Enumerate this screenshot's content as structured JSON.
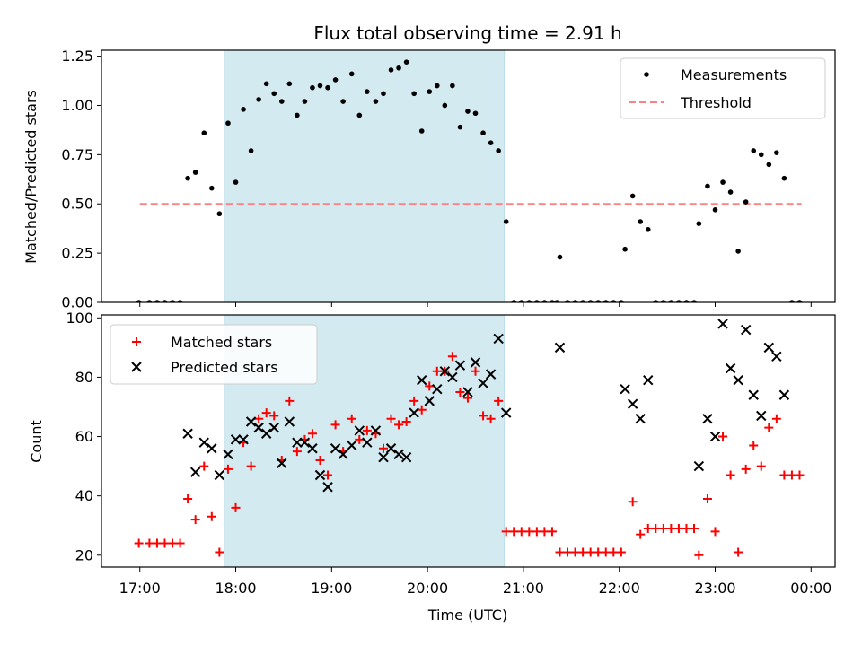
{
  "chart_data": {
    "type": "scatter",
    "title": "Flux total observing time = 2.91 h",
    "xlabel": "Time (UTC)",
    "x_ticks": [
      "17:00",
      "18:00",
      "19:00",
      "20:00",
      "21:00",
      "22:00",
      "23:00",
      "00:00"
    ],
    "x_range_hours": [
      16.6,
      24.25
    ],
    "shaded_interval_hours": [
      17.88,
      20.8
    ],
    "shade_color": "#d3eaf1",
    "top": {
      "ylabel": "Matched/Predicted stars",
      "ylim": [
        0,
        1.28
      ],
      "y_ticks": [
        "0.00",
        "0.25",
        "0.50",
        "0.75",
        "1.00",
        "1.25"
      ],
      "y_tick_values": [
        0,
        0.25,
        0.5,
        0.75,
        1.0,
        1.25
      ],
      "threshold": {
        "name": "Threshold",
        "value": 0.5,
        "x_range_hours": [
          17.0,
          23.9
        ],
        "color": "#ff8080"
      },
      "measurements": {
        "name": "Measurements",
        "color": "#000000",
        "points": [
          [
            16.99,
            0.0
          ],
          [
            17.1,
            0.0
          ],
          [
            17.18,
            0.0
          ],
          [
            17.26,
            0.0
          ],
          [
            17.34,
            0.0
          ],
          [
            17.42,
            0.0
          ],
          [
            17.5,
            0.63
          ],
          [
            17.58,
            0.66
          ],
          [
            17.67,
            0.86
          ],
          [
            17.75,
            0.58
          ],
          [
            17.83,
            0.45
          ],
          [
            17.92,
            0.91
          ],
          [
            18.0,
            0.61
          ],
          [
            18.08,
            0.98
          ],
          [
            18.16,
            0.77
          ],
          [
            18.24,
            1.03
          ],
          [
            18.32,
            1.11
          ],
          [
            18.4,
            1.06
          ],
          [
            18.48,
            1.02
          ],
          [
            18.56,
            1.11
          ],
          [
            18.64,
            0.95
          ],
          [
            18.72,
            1.02
          ],
          [
            18.8,
            1.09
          ],
          [
            18.88,
            1.1
          ],
          [
            18.96,
            1.09
          ],
          [
            19.04,
            1.13
          ],
          [
            19.12,
            1.02
          ],
          [
            19.21,
            1.16
          ],
          [
            19.29,
            0.95
          ],
          [
            19.37,
            1.07
          ],
          [
            19.46,
            1.02
          ],
          [
            19.54,
            1.06
          ],
          [
            19.62,
            1.18
          ],
          [
            19.7,
            1.19
          ],
          [
            19.78,
            1.22
          ],
          [
            19.86,
            1.06
          ],
          [
            19.94,
            0.87
          ],
          [
            20.02,
            1.07
          ],
          [
            20.1,
            1.1
          ],
          [
            20.18,
            1.0
          ],
          [
            20.26,
            1.1
          ],
          [
            20.34,
            0.89
          ],
          [
            20.42,
            0.97
          ],
          [
            20.5,
            0.96
          ],
          [
            20.58,
            0.86
          ],
          [
            20.66,
            0.81
          ],
          [
            20.74,
            0.77
          ],
          [
            20.82,
            0.41
          ],
          [
            20.9,
            0.0
          ],
          [
            20.98,
            0.0
          ],
          [
            21.06,
            0.0
          ],
          [
            21.14,
            0.0
          ],
          [
            21.22,
            0.0
          ],
          [
            21.3,
            0.0
          ],
          [
            21.35,
            0.0
          ],
          [
            21.38,
            0.23
          ],
          [
            21.46,
            0.0
          ],
          [
            21.54,
            0.0
          ],
          [
            21.62,
            0.0
          ],
          [
            21.7,
            0.0
          ],
          [
            21.78,
            0.0
          ],
          [
            21.86,
            0.0
          ],
          [
            21.94,
            0.0
          ],
          [
            22.02,
            0.0
          ],
          [
            22.06,
            0.27
          ],
          [
            22.14,
            0.54
          ],
          [
            22.22,
            0.41
          ],
          [
            22.3,
            0.37
          ],
          [
            22.38,
            0.0
          ],
          [
            22.46,
            0.0
          ],
          [
            22.54,
            0.0
          ],
          [
            22.62,
            0.0
          ],
          [
            22.7,
            0.0
          ],
          [
            22.78,
            0.0
          ],
          [
            22.83,
            0.4
          ],
          [
            22.92,
            0.59
          ],
          [
            23.0,
            0.47
          ],
          [
            23.08,
            0.61
          ],
          [
            23.16,
            0.56
          ],
          [
            23.24,
            0.26
          ],
          [
            23.32,
            0.51
          ],
          [
            23.4,
            0.77
          ],
          [
            23.48,
            0.75
          ],
          [
            23.56,
            0.7
          ],
          [
            23.64,
            0.76
          ],
          [
            23.72,
            0.63
          ],
          [
            23.8,
            0.0
          ],
          [
            23.88,
            0.0
          ]
        ]
      }
    },
    "bottom": {
      "ylabel": "Count",
      "ylim": [
        16,
        101
      ],
      "y_ticks": [
        "20",
        "40",
        "60",
        "80",
        "100"
      ],
      "y_tick_values": [
        20,
        40,
        60,
        80,
        100
      ],
      "series": [
        {
          "name": "Matched stars",
          "marker": "+",
          "color": "#ff0000",
          "points": [
            [
              16.99,
              24
            ],
            [
              17.1,
              24
            ],
            [
              17.18,
              24
            ],
            [
              17.26,
              24
            ],
            [
              17.34,
              24
            ],
            [
              17.42,
              24
            ],
            [
              17.5,
              39
            ],
            [
              17.58,
              32
            ],
            [
              17.67,
              50
            ],
            [
              17.75,
              33
            ],
            [
              17.83,
              21
            ],
            [
              17.92,
              49
            ],
            [
              18.0,
              36
            ],
            [
              18.08,
              58
            ],
            [
              18.16,
              50
            ],
            [
              18.24,
              66
            ],
            [
              18.32,
              68
            ],
            [
              18.4,
              67
            ],
            [
              18.48,
              52
            ],
            [
              18.56,
              72
            ],
            [
              18.64,
              55
            ],
            [
              18.72,
              59
            ],
            [
              18.8,
              61
            ],
            [
              18.88,
              52
            ],
            [
              18.96,
              47
            ],
            [
              19.04,
              64
            ],
            [
              19.12,
              55
            ],
            [
              19.21,
              66
            ],
            [
              19.29,
              59
            ],
            [
              19.37,
              62
            ],
            [
              19.46,
              61
            ],
            [
              19.54,
              56
            ],
            [
              19.62,
              66
            ],
            [
              19.7,
              64
            ],
            [
              19.78,
              65
            ],
            [
              19.86,
              72
            ],
            [
              19.94,
              69
            ],
            [
              20.02,
              77
            ],
            [
              20.1,
              82
            ],
            [
              20.18,
              82
            ],
            [
              20.26,
              87
            ],
            [
              20.34,
              75
            ],
            [
              20.42,
              73
            ],
            [
              20.5,
              82
            ],
            [
              20.58,
              67
            ],
            [
              20.66,
              66
            ],
            [
              20.74,
              72
            ],
            [
              20.82,
              28
            ],
            [
              20.9,
              28
            ],
            [
              20.98,
              28
            ],
            [
              21.06,
              28
            ],
            [
              21.14,
              28
            ],
            [
              21.22,
              28
            ],
            [
              21.3,
              28
            ],
            [
              21.38,
              21
            ],
            [
              21.46,
              21
            ],
            [
              21.54,
              21
            ],
            [
              21.62,
              21
            ],
            [
              21.7,
              21
            ],
            [
              21.78,
              21
            ],
            [
              21.86,
              21
            ],
            [
              21.94,
              21
            ],
            [
              22.02,
              21
            ],
            [
              22.14,
              38
            ],
            [
              22.22,
              27
            ],
            [
              22.3,
              29
            ],
            [
              22.38,
              29
            ],
            [
              22.46,
              29
            ],
            [
              22.54,
              29
            ],
            [
              22.62,
              29
            ],
            [
              22.7,
              29
            ],
            [
              22.78,
              29
            ],
            [
              22.83,
              20
            ],
            [
              22.92,
              39
            ],
            [
              23.0,
              28
            ],
            [
              23.08,
              60
            ],
            [
              23.16,
              47
            ],
            [
              23.24,
              21
            ],
            [
              23.32,
              49
            ],
            [
              23.4,
              57
            ],
            [
              23.48,
              50
            ],
            [
              23.56,
              63
            ],
            [
              23.64,
              66
            ],
            [
              23.72,
              47
            ],
            [
              23.8,
              47
            ],
            [
              23.88,
              47
            ]
          ]
        },
        {
          "name": "Predicted stars",
          "marker": "x",
          "color": "#000000",
          "points": [
            [
              17.5,
              61
            ],
            [
              17.58,
              48
            ],
            [
              17.67,
              58
            ],
            [
              17.75,
              56
            ],
            [
              17.83,
              47
            ],
            [
              17.92,
              54
            ],
            [
              18.0,
              59
            ],
            [
              18.08,
              59
            ],
            [
              18.16,
              65
            ],
            [
              18.24,
              63
            ],
            [
              18.32,
              61
            ],
            [
              18.4,
              63
            ],
            [
              18.48,
              51
            ],
            [
              18.56,
              65
            ],
            [
              18.64,
              58
            ],
            [
              18.72,
              58
            ],
            [
              18.8,
              56
            ],
            [
              18.88,
              47
            ],
            [
              18.96,
              43
            ],
            [
              19.04,
              56
            ],
            [
              19.12,
              54
            ],
            [
              19.21,
              57
            ],
            [
              19.29,
              62
            ],
            [
              19.37,
              58
            ],
            [
              19.46,
              62
            ],
            [
              19.54,
              53
            ],
            [
              19.62,
              56
            ],
            [
              19.7,
              54
            ],
            [
              19.78,
              53
            ],
            [
              19.86,
              68
            ],
            [
              19.94,
              79
            ],
            [
              20.02,
              72
            ],
            [
              20.1,
              76
            ],
            [
              20.18,
              82
            ],
            [
              20.26,
              80
            ],
            [
              20.34,
              84
            ],
            [
              20.42,
              75
            ],
            [
              20.5,
              85
            ],
            [
              20.58,
              78
            ],
            [
              20.66,
              81
            ],
            [
              20.74,
              93
            ],
            [
              20.82,
              68
            ],
            [
              21.38,
              90
            ],
            [
              22.06,
              76
            ],
            [
              22.14,
              71
            ],
            [
              22.22,
              66
            ],
            [
              22.3,
              79
            ],
            [
              22.83,
              50
            ],
            [
              22.92,
              66
            ],
            [
              23.0,
              60
            ],
            [
              23.08,
              98
            ],
            [
              23.16,
              83
            ],
            [
              23.24,
              79
            ],
            [
              23.32,
              96
            ],
            [
              23.4,
              74
            ],
            [
              23.48,
              67
            ],
            [
              23.56,
              90
            ],
            [
              23.64,
              87
            ],
            [
              23.72,
              74
            ]
          ]
        }
      ]
    }
  }
}
